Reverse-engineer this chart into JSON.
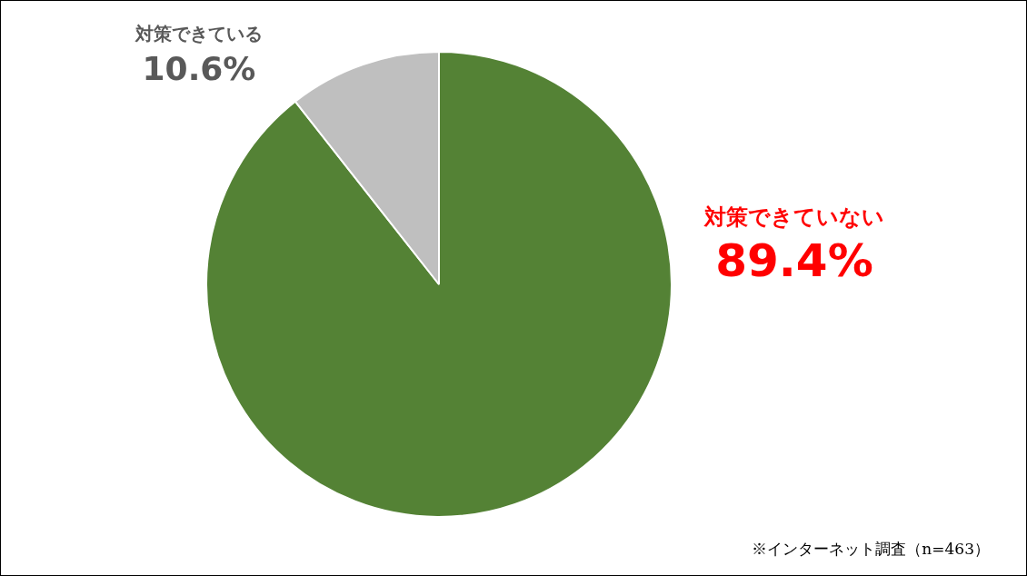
{
  "chart_data": {
    "type": "pie",
    "categories": [
      "対策できていない",
      "対策できている"
    ],
    "values": [
      89.4,
      10.6
    ],
    "colors": [
      "#548235",
      "#bfbfbf"
    ],
    "value_labels": [
      "89.4%",
      "10.6%"
    ],
    "annotations": [
      "※インターネット調査（n=463）"
    ]
  }
}
